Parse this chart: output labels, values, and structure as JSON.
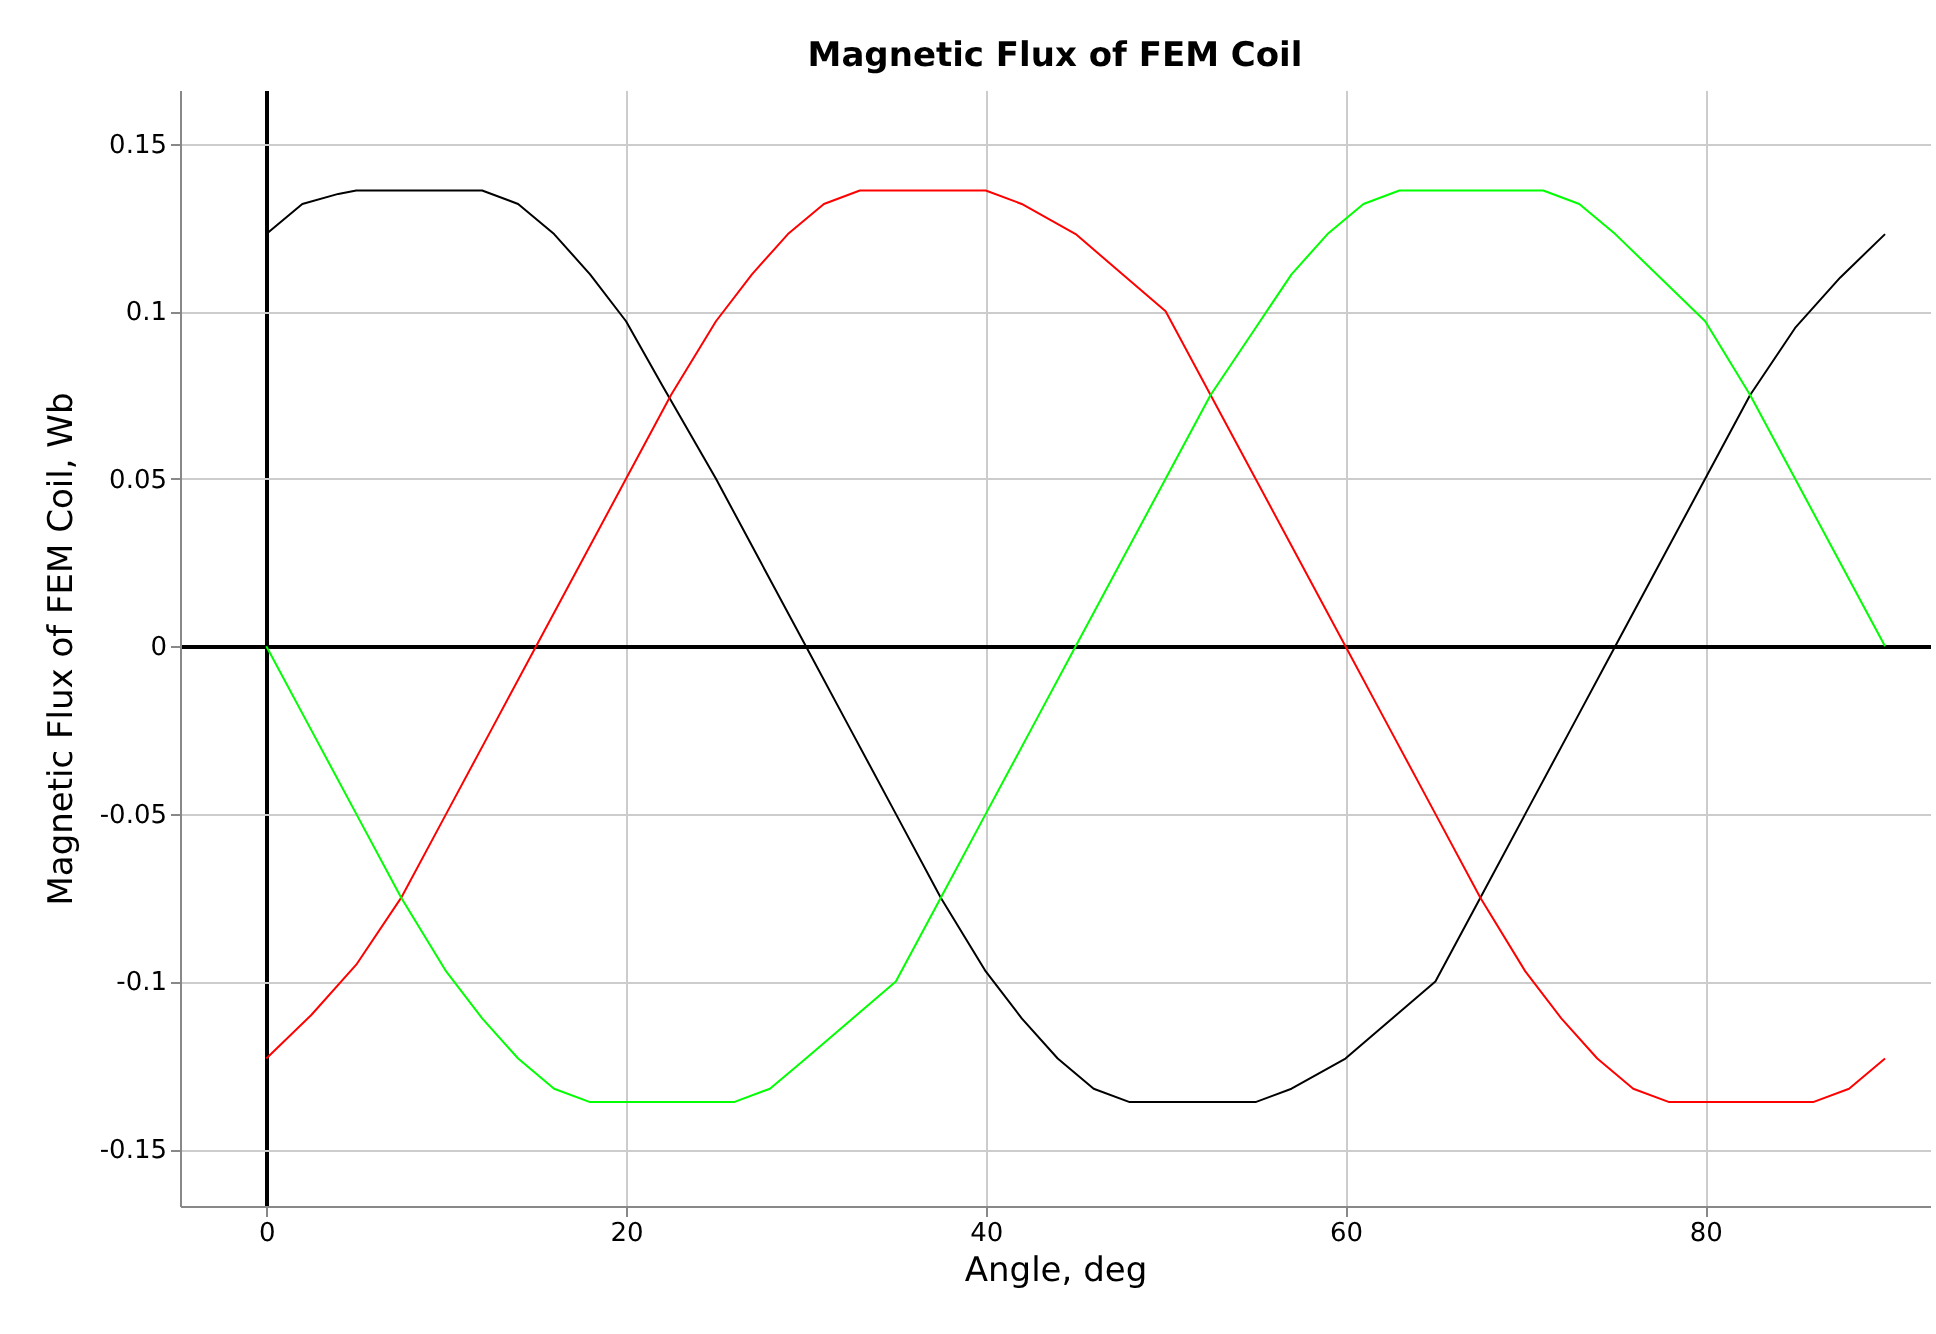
{
  "chart_data": {
    "type": "line",
    "title": "Magnetic Flux of FEM Coil",
    "xlabel": "Angle, deg",
    "ylabel": "Magnetic Flux of FEM Coil, Wb",
    "xlim": [
      -4.8,
      92.5
    ],
    "ylim": [
      -0.167,
      0.166
    ],
    "xticks": [
      0,
      20,
      40,
      60,
      80
    ],
    "yticks": [
      -0.15,
      -0.1,
      -0.05,
      0,
      0.05,
      0.1,
      0.15
    ],
    "grid": true,
    "series": [
      {
        "color": "#000000",
        "x": [
          0,
          2,
          4,
          5,
          12,
          14,
          16,
          18,
          20,
          22,
          25,
          27.5,
          30,
          32.5,
          35,
          37.5,
          40,
          42,
          44,
          46,
          48,
          55,
          57,
          60,
          65,
          67.5,
          70,
          72.5,
          75,
          77.5,
          80,
          82.5,
          85,
          87.5,
          90
        ],
        "values": [
          0.123,
          0.132,
          0.135,
          0.136,
          0.136,
          0.132,
          0.123,
          0.111,
          0.097,
          0.078,
          0.05,
          0.025,
          0,
          -0.025,
          -0.05,
          -0.075,
          -0.097,
          -0.111,
          -0.123,
          -0.132,
          -0.136,
          -0.136,
          -0.132,
          -0.123,
          -0.1,
          -0.075,
          -0.05,
          -0.025,
          0,
          0.025,
          0.05,
          0.075,
          0.095,
          0.11,
          0.123
        ]
      },
      {
        "color": "#ff0000",
        "x": [
          0,
          2.5,
          5,
          7.5,
          10,
          12.5,
          15,
          17.5,
          20,
          22.5,
          25,
          27,
          29,
          31,
          33,
          40,
          42,
          45,
          50,
          52.5,
          55,
          57.5,
          60,
          62.5,
          65,
          67.5,
          70,
          72,
          74,
          76,
          78,
          86,
          88,
          90
        ],
        "values": [
          -0.123,
          -0.11,
          -0.095,
          -0.075,
          -0.05,
          -0.025,
          0,
          0.025,
          0.05,
          0.075,
          0.097,
          0.111,
          0.123,
          0.132,
          0.136,
          0.136,
          0.132,
          0.123,
          0.1,
          0.075,
          0.05,
          0.025,
          0,
          -0.025,
          -0.05,
          -0.075,
          -0.097,
          -0.111,
          -0.123,
          -0.132,
          -0.136,
          -0.136,
          -0.132,
          -0.123
        ]
      },
      {
        "color": "#00ff00",
        "x": [
          0,
          2.5,
          5,
          7.5,
          10,
          12,
          14,
          16,
          18,
          26,
          28,
          30,
          35,
          37.5,
          40,
          42.5,
          45,
          47.5,
          50,
          52.5,
          55,
          57,
          59,
          61,
          63,
          71,
          73,
          75,
          80,
          82.5,
          85,
          87.5,
          90
        ],
        "values": [
          0,
          -0.025,
          -0.05,
          -0.075,
          -0.097,
          -0.111,
          -0.123,
          -0.132,
          -0.136,
          -0.136,
          -0.132,
          -0.123,
          -0.1,
          -0.075,
          -0.05,
          -0.025,
          0,
          0.025,
          0.05,
          0.075,
          0.095,
          0.111,
          0.123,
          0.132,
          0.136,
          0.136,
          0.132,
          0.123,
          0.097,
          0.075,
          0.05,
          0.025,
          0
        ]
      }
    ]
  }
}
